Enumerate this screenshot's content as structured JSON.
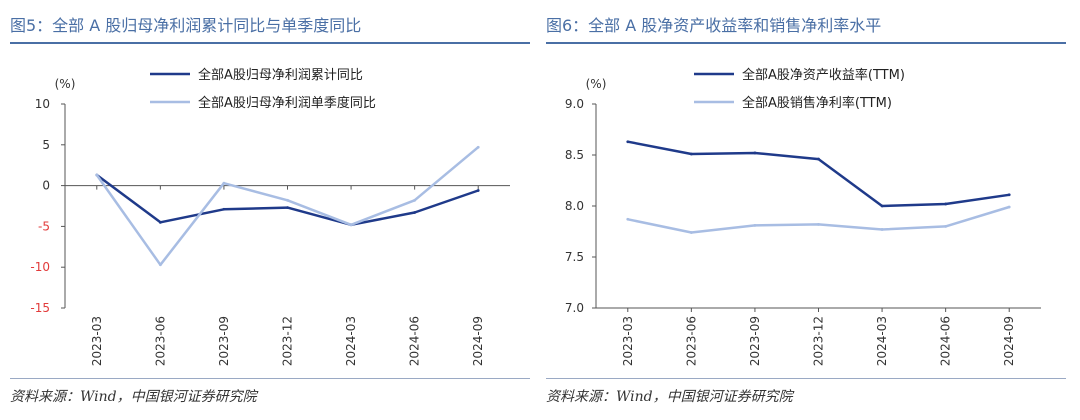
{
  "left": {
    "title": "图5：全部 A 股归母净利润累计同比与单季度同比",
    "source": "资料来源：Wind，中国银河证券研究院",
    "unit": "(%)",
    "chart_data": {
      "type": "line",
      "categories": [
        "2023-03",
        "2023-06",
        "2023-09",
        "2023-12",
        "2024-03",
        "2024-06",
        "2024-09"
      ],
      "series": [
        {
          "name": "全部A股归母净利润累计同比",
          "values": [
            1.3,
            -4.5,
            -2.9,
            -2.7,
            -4.8,
            -3.3,
            -0.6
          ],
          "color": "#1f3a8a"
        },
        {
          "name": "全部A股归母净利润单季度同比",
          "values": [
            1.3,
            -9.7,
            0.3,
            -1.8,
            -4.8,
            -1.8,
            4.7
          ],
          "color": "#a8bde3"
        }
      ],
      "ylim": [
        -15,
        10
      ],
      "yticks": [
        -15,
        -10,
        -5,
        0,
        5,
        10
      ],
      "negative_tick_color": "#e23b3b",
      "legend": "top",
      "grid": false
    }
  },
  "right": {
    "title": "图6：全部 A 股净资产收益率和销售净利率水平",
    "source": "资料来源：Wind，中国银河证券研究院",
    "unit": "(%)",
    "chart_data": {
      "type": "line",
      "categories": [
        "2023-03",
        "2023-06",
        "2023-09",
        "2023-12",
        "2024-03",
        "2024-06",
        "2024-09"
      ],
      "series": [
        {
          "name": "全部A股净资产收益率(TTM)",
          "values": [
            8.63,
            8.51,
            8.52,
            8.46,
            8.0,
            8.02,
            8.11
          ],
          "color": "#1f3a8a"
        },
        {
          "name": "全部A股销售净利率(TTM)",
          "values": [
            7.87,
            7.74,
            7.81,
            7.82,
            7.77,
            7.8,
            7.99
          ],
          "color": "#a8bde3"
        }
      ],
      "ylim": [
        7.0,
        9.0
      ],
      "yticks": [
        7.0,
        7.5,
        8.0,
        8.5,
        9.0
      ],
      "tick_format": "fixed1",
      "legend": "top",
      "grid": false
    }
  }
}
